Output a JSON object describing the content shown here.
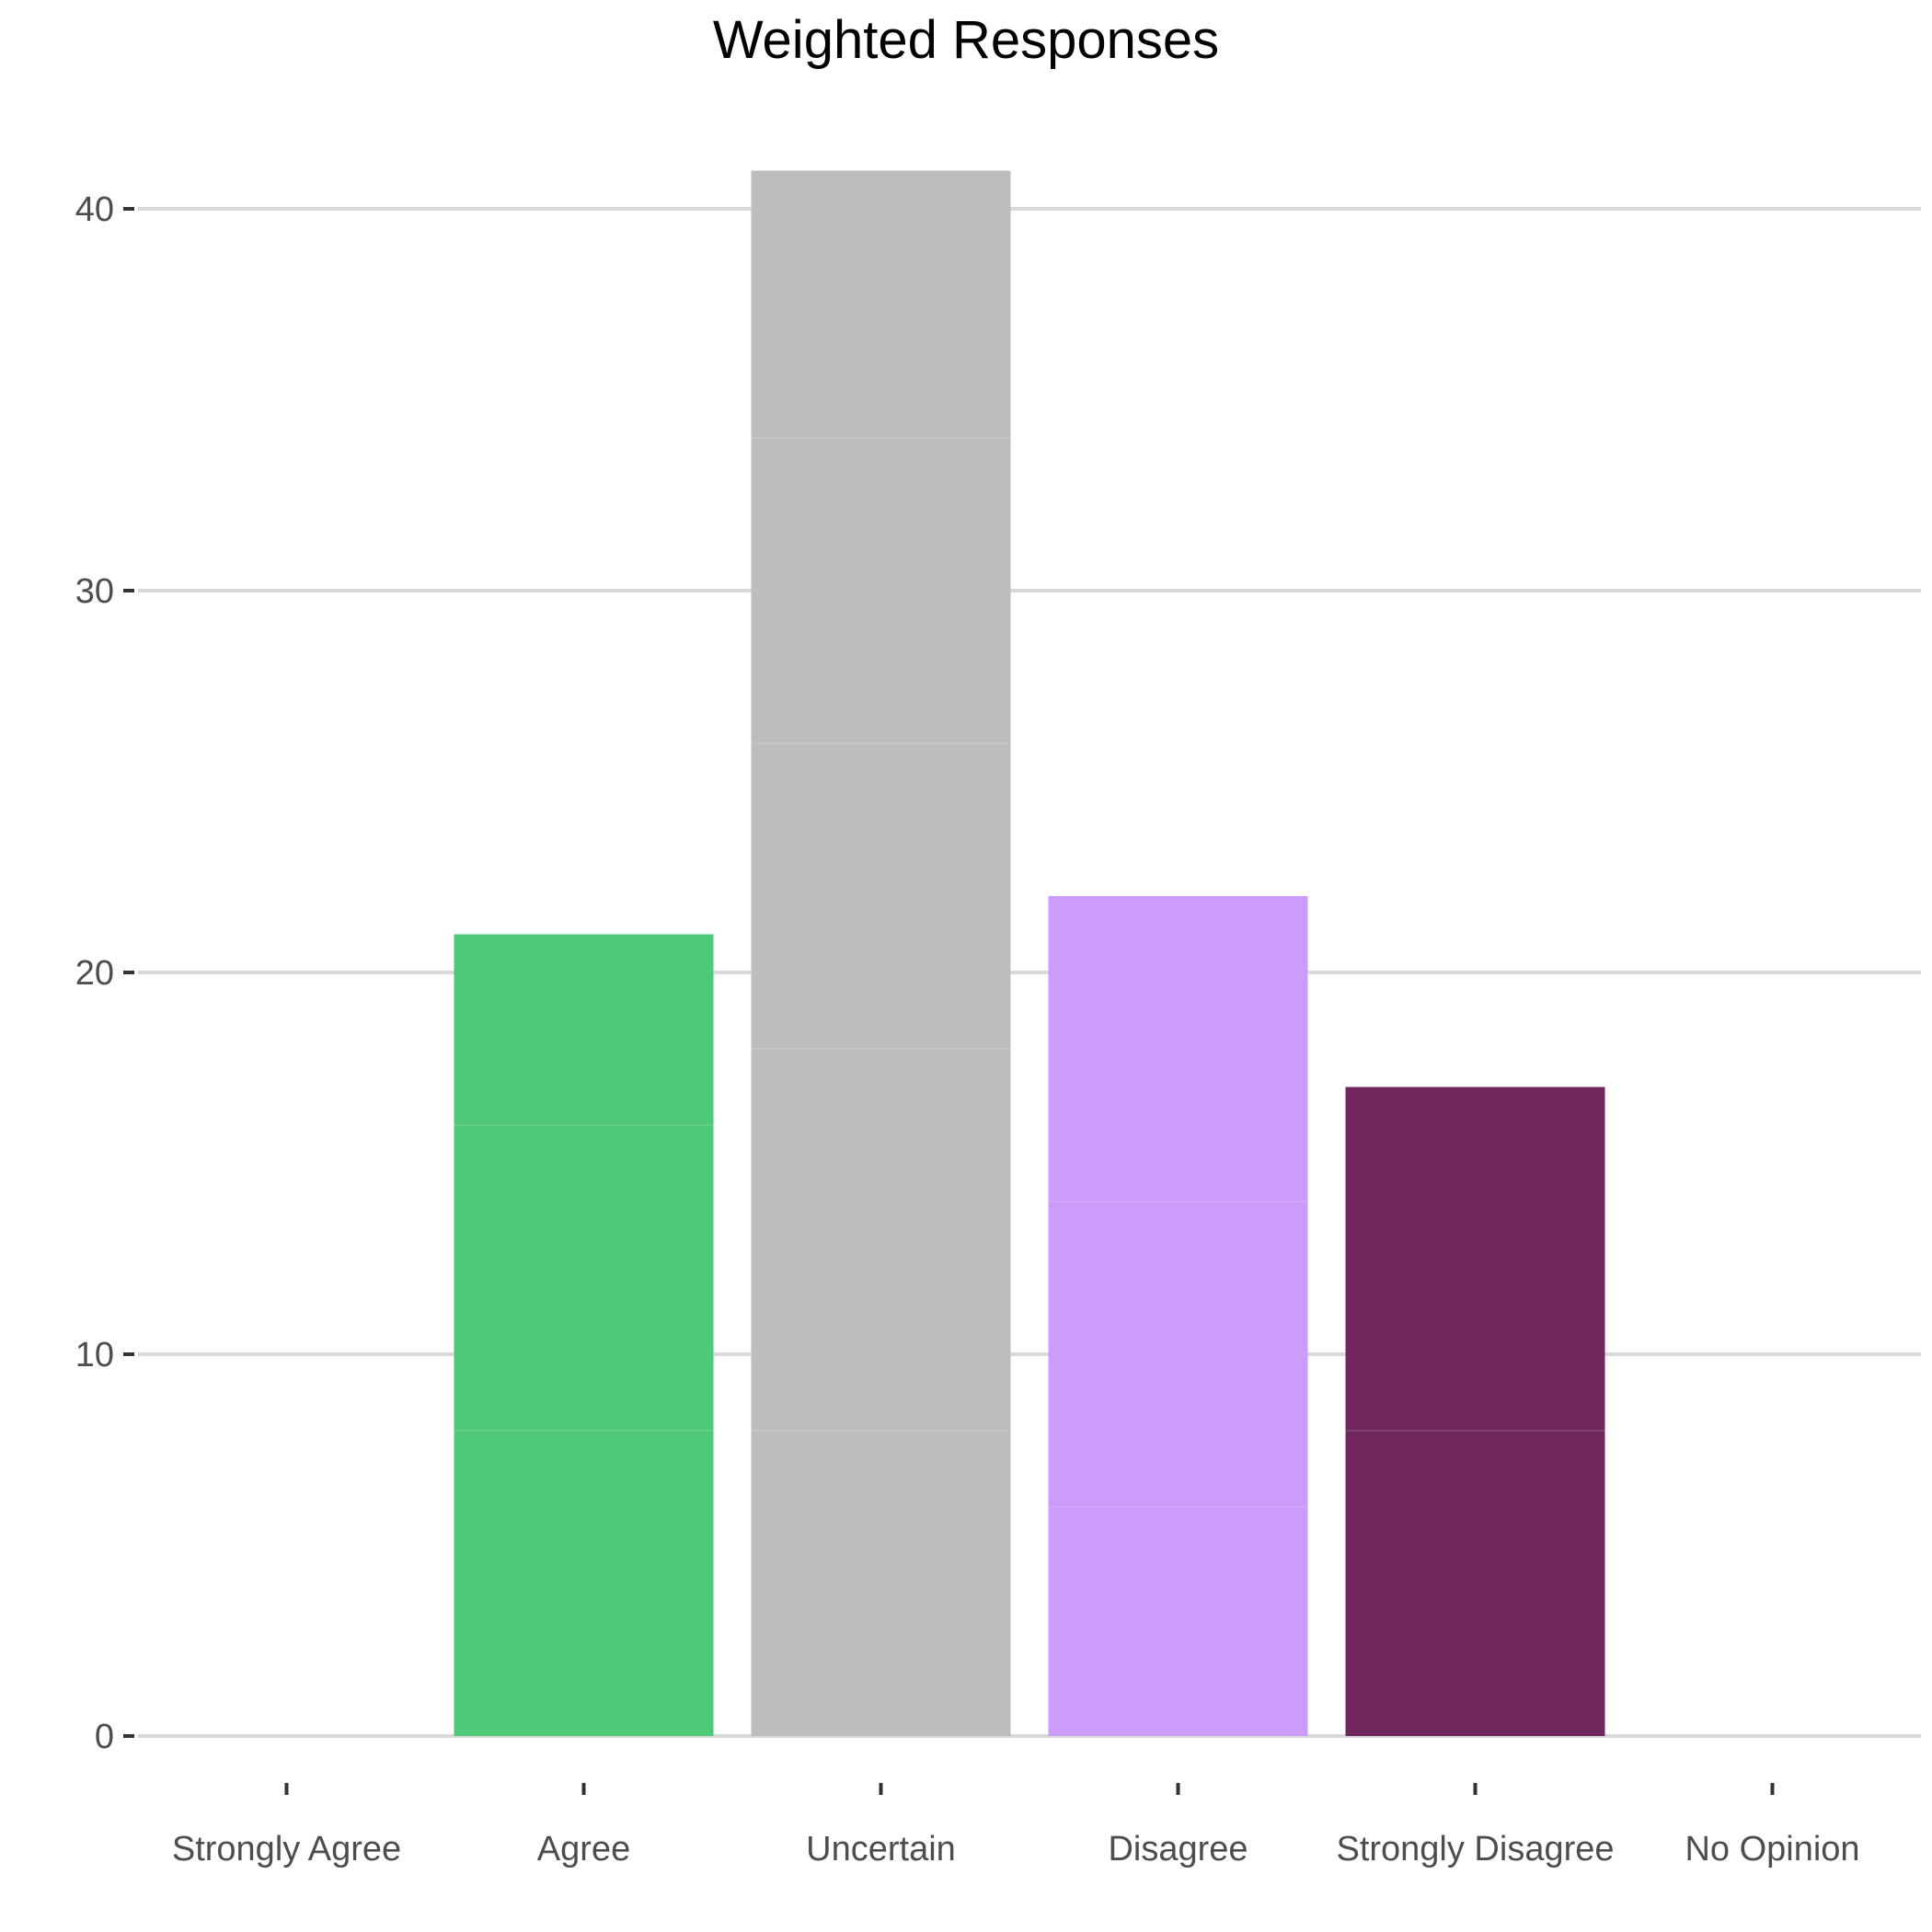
{
  "chart_data": {
    "type": "bar",
    "title": "Weighted Responses",
    "xlabel": "",
    "ylabel": "",
    "categories": [
      "Strongly Agree",
      "Agree",
      "Uncertain",
      "Disagree",
      "Strongly Disagree",
      "No Opinion"
    ],
    "values": [
      0,
      21,
      41,
      22,
      17,
      0
    ],
    "segments": [
      [],
      [
        8,
        8,
        5
      ],
      [
        8,
        10,
        8,
        8,
        7
      ],
      [
        6,
        8,
        8
      ],
      [
        8,
        9
      ],
      []
    ],
    "colors": [
      "#4ec977",
      "#4ec977",
      "#bdbdbd",
      "#cc9cfc",
      "#71265e",
      "#71265e"
    ],
    "ylim": [
      -2,
      43
    ],
    "yticks": [
      0,
      10,
      20,
      30,
      40
    ],
    "grid": true,
    "legend": "none"
  }
}
